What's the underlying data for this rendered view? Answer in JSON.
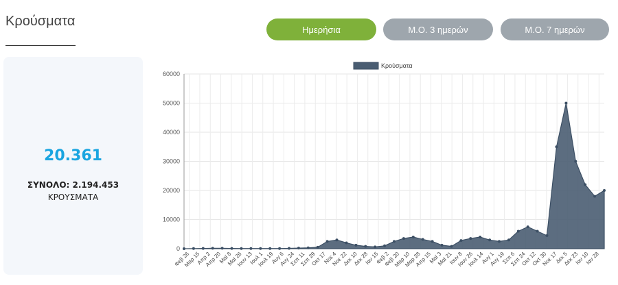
{
  "section_title": "Κρούσματα",
  "buttons": {
    "daily": "Ημερήσια",
    "avg3": "Μ.Ο. 3 ημερών",
    "avg7": "Μ.Ο. 7 ημερών"
  },
  "summary": {
    "value": "20.361",
    "total_line": "ΣΥΝΟΛΟ: 2.194.453",
    "cases_label": "ΚΡΟΥΣΜΑΤΑ"
  },
  "colors": {
    "active_button": "#7fb13a",
    "inactive_button": "#9ea6ad",
    "big_number": "#1aa5e0",
    "series_fill": "#4a5d72",
    "series_line": "#3c4f64"
  },
  "chart_data": {
    "type": "area",
    "legend": "Κρούσματα",
    "legend_position": "top-center",
    "grid": true,
    "ylim": [
      0,
      60000
    ],
    "yticks": [
      0,
      10000,
      20000,
      30000,
      40000,
      50000,
      60000
    ],
    "xtick_labels": [
      "Φεβ 26",
      "Μαρ 15",
      "Απρ 2",
      "Απρ 20",
      "Μαϊ 8",
      "Μαϊ 26",
      "Ιουν 13",
      "Ιουλ 1",
      "Ιουλ 19",
      "Αυγ 6",
      "Αυγ 24",
      "Σεπ 11",
      "Σεπ 29",
      "Οκτ 17",
      "Νοε 4",
      "Νοε 22",
      "Δεκ 10",
      "Δεκ 28",
      "Ιαν 15",
      "Φεβ 2",
      "Φεβ 20",
      "Μαρ 10",
      "Μαρ 28",
      "Απρ 15",
      "Μαϊ 3",
      "Μαϊ 21",
      "Ιουν 8",
      "Ιουν 26",
      "Ιουλ 14",
      "Αυγ 1",
      "Αυγ 19",
      "Σεπ 6",
      "Σεπ 24",
      "Οκτ 12",
      "Οκτ 30",
      "Νοε 17",
      "Δεκ 5",
      "Δεκ 23",
      "Ιαν 10",
      "Ιαν 28"
    ],
    "values": [
      0,
      50,
      100,
      150,
      150,
      100,
      80,
      60,
      60,
      60,
      80,
      120,
      200,
      300,
      500,
      2500,
      3000,
      2000,
      1200,
      800,
      600,
      1000,
      2500,
      3500,
      4000,
      3200,
      2500,
      1200,
      800,
      2800,
      3500,
      4000,
      3000,
      2500,
      3000,
      6000,
      7500,
      6000,
      4500,
      35000,
      50000,
      30000,
      22000,
      18000,
      20000
    ]
  }
}
